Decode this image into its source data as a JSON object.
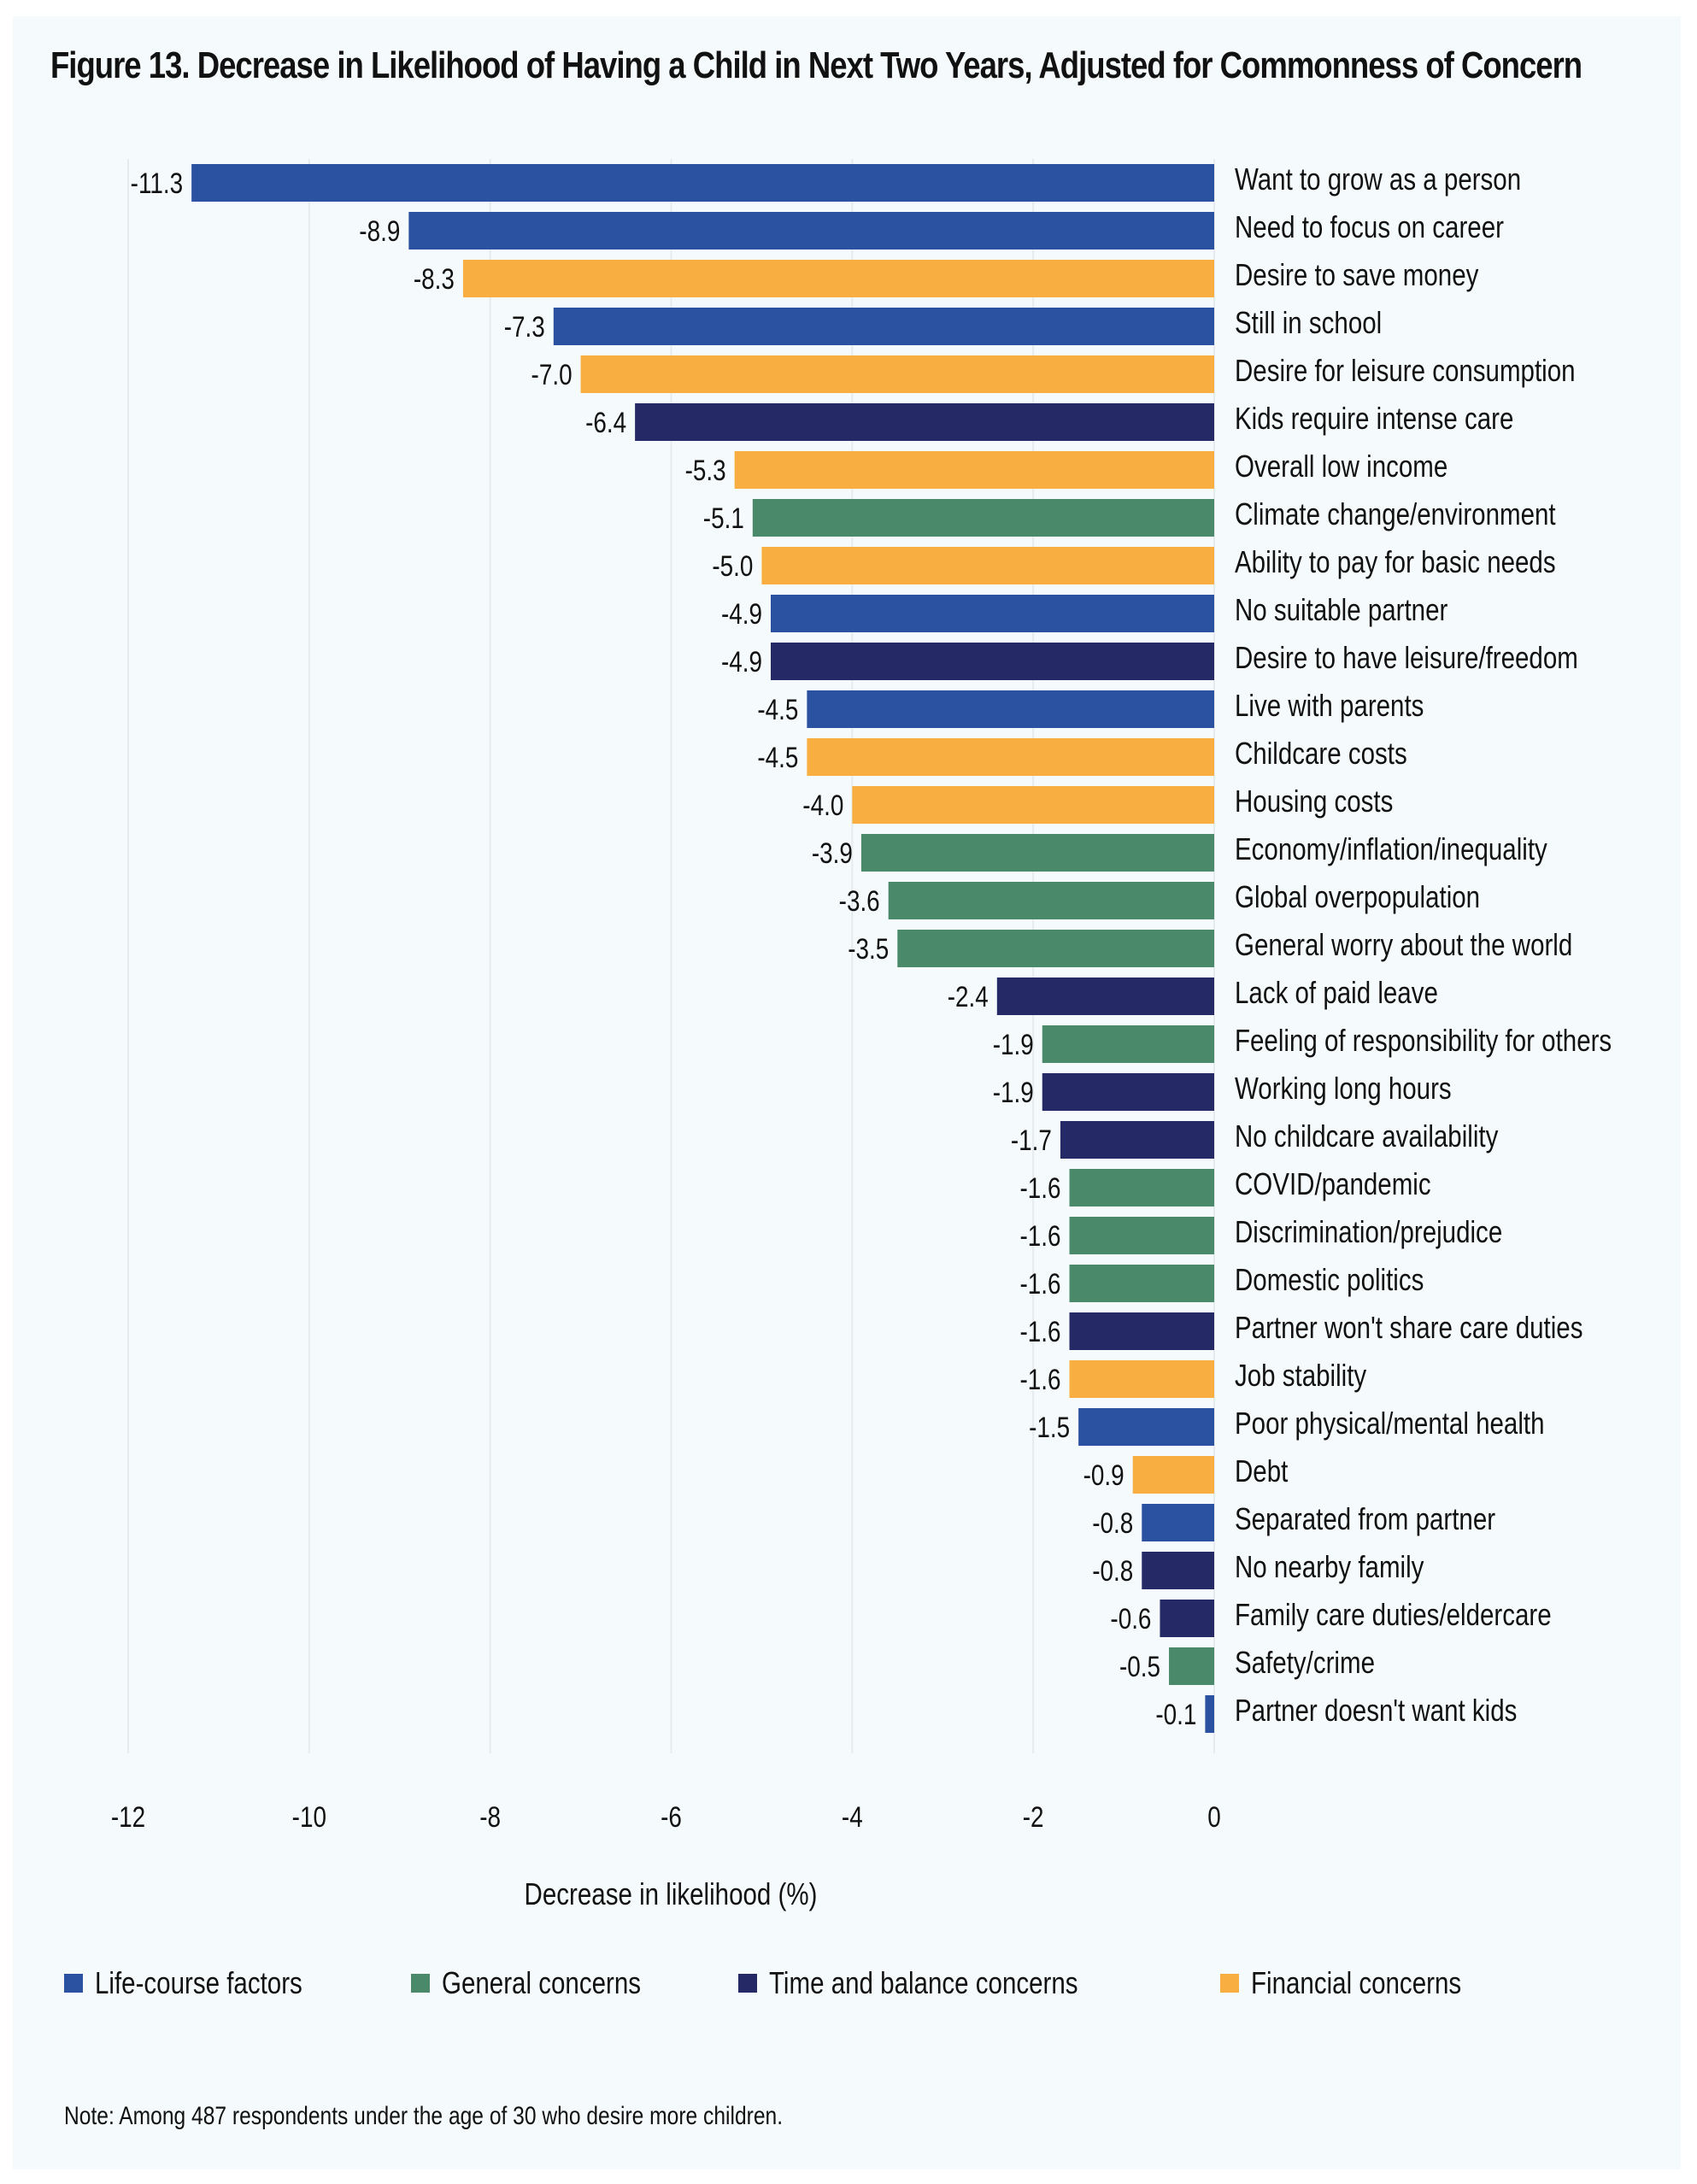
{
  "figure": {
    "title": "Figure 13. Decrease in Likelihood of Having a Child in Next Two Years, Adjusted for Commonness of Concern",
    "note": "Note: Among 487 respondents under the age of 30 who desire more children."
  },
  "colors": {
    "life_course": "#2B51A1",
    "general": "#4A8A6B",
    "time_balance": "#252A66",
    "financial": "#F9AE42",
    "background": "#F5FBFC",
    "gridline": "#E6ECEE"
  },
  "legend": [
    {
      "key": "life_course",
      "label": "Life-course factors"
    },
    {
      "key": "general",
      "label": "General concerns"
    },
    {
      "key": "time_balance",
      "label": "Time and balance concerns"
    },
    {
      "key": "financial",
      "label": "Financial concerns"
    }
  ],
  "chart_data": {
    "type": "bar",
    "orientation": "horizontal",
    "title": "Figure 13. Decrease in Likelihood of Having a Child in Next Two Years, Adjusted for Commonness of Concern",
    "xlabel": "Decrease in likelihood (%)",
    "ylabel": "",
    "xlim": [
      -12,
      0
    ],
    "xticks": [
      -12,
      -10,
      -8,
      -6,
      -4,
      -2,
      0
    ],
    "xtick_labels": [
      "-12",
      "-10",
      "-8",
      "-6",
      "-4",
      "-2",
      "0"
    ],
    "grid": "vertical",
    "legend_position": "bottom",
    "categories": [
      "Want to grow as a person",
      "Need to focus on career",
      "Desire to save money",
      "Still in school",
      "Desire for leisure consumption",
      "Kids require intense care",
      "Overall low income",
      "Climate change/environment",
      "Ability to pay for basic needs",
      "No suitable partner",
      "Desire to have leisure/freedom",
      "Live with parents",
      "Childcare costs",
      "Housing costs",
      "Economy/inflation/inequality",
      "Global overpopulation",
      "General worry about the world",
      "Lack of paid leave",
      "Feeling of responsibility for others",
      "Working long hours",
      "No childcare availability",
      "COVID/pandemic",
      "Discrimination/prejudice",
      "Domestic politics",
      "Partner won't share care duties",
      "Job stability",
      "Poor physical/mental health",
      "Debt",
      "Separated from partner",
      "No nearby family",
      "Family care duties/eldercare",
      "Safety/crime",
      "Partner doesn't want kids"
    ],
    "values": [
      -11.3,
      -8.9,
      -8.3,
      -7.3,
      -7.0,
      -6.4,
      -5.3,
      -5.1,
      -5.0,
      -4.9,
      -4.9,
      -4.5,
      -4.5,
      -4.0,
      -3.9,
      -3.6,
      -3.5,
      -2.4,
      -1.9,
      -1.9,
      -1.7,
      -1.6,
      -1.6,
      -1.6,
      -1.6,
      -1.6,
      -1.5,
      -0.9,
      -0.8,
      -0.8,
      -0.6,
      -0.5,
      -0.1
    ],
    "value_labels": [
      "-11.3",
      "-8.9",
      "-8.3",
      "-7.3",
      "-7.0",
      "-6.4",
      "-5.3",
      "-5.1",
      "-5.0",
      "-4.9",
      "-4.9",
      "-4.5",
      "-4.5",
      "-4.0",
      "-3.9",
      "-3.6",
      "-3.5",
      "-2.4",
      "-1.9",
      "-1.9",
      "-1.7",
      "-1.6",
      "-1.6",
      "-1.6",
      "-1.6",
      "-1.6",
      "-1.5",
      "-0.9",
      "-0.8",
      "-0.8",
      "-0.6",
      "-0.5",
      "-0.1"
    ],
    "groups": [
      "life_course",
      "life_course",
      "financial",
      "life_course",
      "financial",
      "time_balance",
      "financial",
      "general",
      "financial",
      "life_course",
      "time_balance",
      "life_course",
      "financial",
      "financial",
      "general",
      "general",
      "general",
      "time_balance",
      "general",
      "time_balance",
      "time_balance",
      "general",
      "general",
      "general",
      "time_balance",
      "financial",
      "life_course",
      "financial",
      "life_course",
      "time_balance",
      "time_balance",
      "general",
      "life_course"
    ],
    "series": [
      {
        "name": "Life-course factors",
        "key": "life_course"
      },
      {
        "name": "General concerns",
        "key": "general"
      },
      {
        "name": "Time and balance concerns",
        "key": "time_balance"
      },
      {
        "name": "Financial concerns",
        "key": "financial"
      }
    ]
  }
}
